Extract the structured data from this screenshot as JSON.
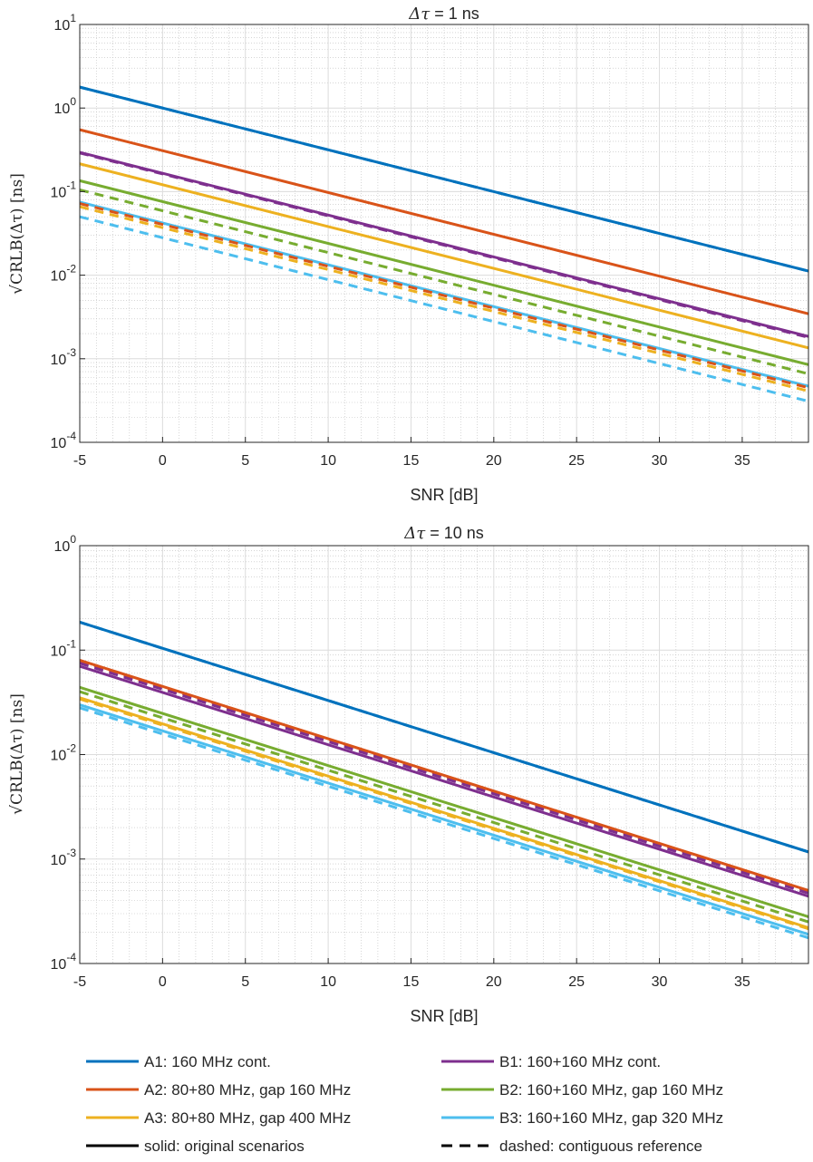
{
  "figure": {
    "legend": [
      {
        "label": "A1: 160 MHz cont.",
        "color": "#0072BD",
        "style": "solid"
      },
      {
        "label": "B1: 160+160 MHz cont.",
        "color": "#7E2F8E",
        "style": "solid"
      },
      {
        "label": "A2: 80+80 MHz, gap 160 MHz",
        "color": "#D95319",
        "style": "solid"
      },
      {
        "label": "B2: 160+160 MHz, gap 160 MHz",
        "color": "#77AC30",
        "style": "solid"
      },
      {
        "label": "A3: 80+80 MHz, gap 400 MHz",
        "color": "#EDB120",
        "style": "solid"
      },
      {
        "label": "B3: 160+160 MHz, gap 320 MHz",
        "color": "#4DBEEE",
        "style": "solid"
      },
      {
        "label": "solid: original scenarios",
        "color": "#000000",
        "style": "solid"
      },
      {
        "label": "dashed: contiguous reference",
        "color": "#000000",
        "style": "dashed"
      }
    ]
  },
  "chart_data": [
    {
      "type": "line",
      "title_prefix": "Δτ",
      "title_suffix": " = 1 ns",
      "xlabel": "SNR [dB]",
      "ylabel": "√CRLB(Δτ) [ns]",
      "xlim": [
        -5,
        39
      ],
      "ylim": [
        0.0001,
        10
      ],
      "yscale": "log",
      "grid": true,
      "xticks": [
        -5,
        0,
        5,
        10,
        15,
        20,
        25,
        30,
        35
      ],
      "yticks": [
        {
          "value": 10,
          "base": "10",
          "exp": "1"
        },
        {
          "value": 1,
          "base": "10",
          "exp": "0"
        },
        {
          "value": 0.1,
          "base": "10",
          "exp": "-1"
        },
        {
          "value": 0.01,
          "base": "10",
          "exp": "-2"
        },
        {
          "value": 0.001,
          "base": "10",
          "exp": "-3"
        },
        {
          "value": 0.0001,
          "base": "10",
          "exp": "-4"
        }
      ],
      "series": [
        {
          "name": "A1: 160 MHz cont.",
          "color": "#0072BD",
          "style": "solid",
          "x": [
            -5,
            39
          ],
          "y": [
            1.78,
            0.0112
          ]
        },
        {
          "name": "A2: 80+80 MHz, gap 160 MHz",
          "color": "#D95319",
          "style": "solid",
          "x": [
            -5,
            39
          ],
          "y": [
            0.55,
            0.00345
          ]
        },
        {
          "name": "A3: 80+80 MHz, gap 400 MHz",
          "color": "#EDB120",
          "style": "solid",
          "x": [
            -5,
            39
          ],
          "y": [
            0.215,
            0.00135
          ]
        },
        {
          "name": "B1: 160+160 MHz cont.",
          "color": "#7E2F8E",
          "style": "solid",
          "x": [
            -5,
            39
          ],
          "y": [
            0.295,
            0.00185
          ]
        },
        {
          "name": "B2: 160+160 MHz, gap 160 MHz",
          "color": "#77AC30",
          "style": "solid",
          "x": [
            -5,
            39
          ],
          "y": [
            0.135,
            0.00085
          ]
        },
        {
          "name": "B3: 160+160 MHz, gap 320 MHz",
          "color": "#4DBEEE",
          "style": "solid",
          "x": [
            -5,
            39
          ],
          "y": [
            0.075,
            0.00047
          ]
        },
        {
          "name": "A1 ref",
          "color": "#0072BD",
          "style": "dashed",
          "x": [
            -5,
            39
          ],
          "y": [
            1.78,
            0.0112
          ]
        },
        {
          "name": "A2 ref",
          "color": "#D95319",
          "style": "dashed",
          "x": [
            -5,
            39
          ],
          "y": [
            0.072,
            0.00045
          ]
        },
        {
          "name": "A3 ref",
          "color": "#EDB120",
          "style": "dashed",
          "x": [
            -5,
            39
          ],
          "y": [
            0.066,
            0.00041
          ]
        },
        {
          "name": "B1 ref",
          "color": "#7E2F8E",
          "style": "dashed",
          "x": [
            -5,
            39
          ],
          "y": [
            0.29,
            0.0018
          ]
        },
        {
          "name": "B2 ref",
          "color": "#77AC30",
          "style": "dashed",
          "x": [
            -5,
            39
          ],
          "y": [
            0.105,
            0.00066
          ]
        },
        {
          "name": "B3 ref",
          "color": "#4DBEEE",
          "style": "dashed",
          "x": [
            -5,
            39
          ],
          "y": [
            0.05,
            0.00031
          ]
        }
      ]
    },
    {
      "type": "line",
      "title_prefix": "Δτ",
      "title_suffix": " = 10 ns",
      "xlabel": "SNR [dB]",
      "ylabel": "√CRLB(Δτ) [ns]",
      "xlim": [
        -5,
        39
      ],
      "ylim": [
        0.0001,
        1
      ],
      "yscale": "log",
      "grid": true,
      "xticks": [
        -5,
        0,
        5,
        10,
        15,
        20,
        25,
        30,
        35
      ],
      "yticks": [
        {
          "value": 1,
          "base": "10",
          "exp": "0"
        },
        {
          "value": 0.1,
          "base": "10",
          "exp": "-1"
        },
        {
          "value": 0.01,
          "base": "10",
          "exp": "-2"
        },
        {
          "value": 0.001,
          "base": "10",
          "exp": "-3"
        },
        {
          "value": 0.0001,
          "base": "10",
          "exp": "-4"
        }
      ],
      "series": [
        {
          "name": "A1: 160 MHz cont.",
          "color": "#0072BD",
          "style": "solid",
          "x": [
            -5,
            39
          ],
          "y": [
            0.185,
            0.00117
          ]
        },
        {
          "name": "A2: 80+80 MHz, gap 160 MHz",
          "color": "#D95319",
          "style": "solid",
          "x": [
            -5,
            39
          ],
          "y": [
            0.08,
            0.0005
          ]
        },
        {
          "name": "A3: 80+80 MHz, gap 400 MHz",
          "color": "#EDB120",
          "style": "solid",
          "x": [
            -5,
            39
          ],
          "y": [
            0.035,
            0.00022
          ]
        },
        {
          "name": "B1: 160+160 MHz cont.",
          "color": "#7E2F8E",
          "style": "solid",
          "x": [
            -5,
            39
          ],
          "y": [
            0.07,
            0.00044
          ]
        },
        {
          "name": "B2: 160+160 MHz, gap 160 MHz",
          "color": "#77AC30",
          "style": "solid",
          "x": [
            -5,
            39
          ],
          "y": [
            0.044,
            0.00028
          ]
        },
        {
          "name": "B3: 160+160 MHz, gap 320 MHz",
          "color": "#4DBEEE",
          "style": "solid",
          "x": [
            -5,
            39
          ],
          "y": [
            0.03,
            0.00019
          ]
        },
        {
          "name": "A1 ref",
          "color": "#0072BD",
          "style": "dashed",
          "x": [
            -5,
            39
          ],
          "y": [
            0.185,
            0.00117
          ]
        },
        {
          "name": "A2 ref",
          "color": "#D95319",
          "style": "dashed",
          "x": [
            -5,
            39
          ],
          "y": [
            0.078,
            0.00049
          ]
        },
        {
          "name": "A3 ref",
          "color": "#EDB120",
          "style": "dashed",
          "x": [
            -5,
            39
          ],
          "y": [
            0.034,
            0.000215
          ]
        },
        {
          "name": "B1 ref",
          "color": "#7E2F8E",
          "style": "dashed",
          "x": [
            -5,
            39
          ],
          "y": [
            0.075,
            0.00047
          ]
        },
        {
          "name": "B2 ref",
          "color": "#77AC30",
          "style": "dashed",
          "x": [
            -5,
            39
          ],
          "y": [
            0.04,
            0.00025
          ]
        },
        {
          "name": "B3 ref",
          "color": "#4DBEEE",
          "style": "dashed",
          "x": [
            -5,
            39
          ],
          "y": [
            0.028,
            0.000176
          ]
        }
      ]
    }
  ]
}
